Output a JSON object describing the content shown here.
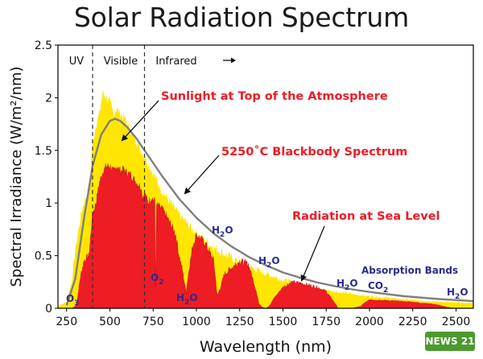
{
  "title": "Solar Radiation Spectrum",
  "watermark": "NEWS 21",
  "colors": {
    "top_of_atmosphere": "#ffe600",
    "sea_level": "#ee1c25",
    "blackbody": "#7f7f7f",
    "annotation_red": "#ee1c25",
    "molecule_label": "#2b2b8f"
  },
  "chart_data": {
    "type": "area",
    "title": "Solar Radiation Spectrum",
    "xlabel": "Wavelength (nm)",
    "ylabel": "Spectral Irradiance (W/m²/nm)",
    "xlim": [
      200,
      2600
    ],
    "ylim": [
      0,
      2.5
    ],
    "x_ticks": [
      250,
      500,
      750,
      1000,
      1250,
      1500,
      1750,
      2000,
      2250,
      2500
    ],
    "y_ticks": [
      0,
      0.5,
      1,
      1.5,
      2,
      2.5
    ],
    "grid": false,
    "regions": [
      {
        "label": "UV",
        "x_end": 400
      },
      {
        "label": "Visible",
        "x_start": 400,
        "x_end": 700
      },
      {
        "label": "Infrared",
        "x_start": 700,
        "arrow": "right"
      }
    ],
    "region_dividers": [
      400,
      700
    ],
    "series": [
      {
        "name": "Sunlight at Top of the Atmosphere",
        "fill": "#ffe600",
        "x": [
          200,
          250,
          280,
          300,
          320,
          340,
          360,
          380,
          400,
          420,
          440,
          460,
          480,
          500,
          520,
          540,
          560,
          580,
          600,
          620,
          650,
          680,
          700,
          750,
          800,
          850,
          900,
          950,
          1000,
          1050,
          1100,
          1200,
          1300,
          1400,
          1500,
          1600,
          1700,
          1800,
          1900,
          2000,
          2100,
          2200,
          2300,
          2400,
          2500,
          2600
        ],
        "y": [
          0.02,
          0.06,
          0.25,
          0.55,
          0.75,
          0.95,
          1.05,
          1.15,
          1.55,
          1.75,
          1.85,
          2.05,
          2.0,
          1.95,
          1.85,
          1.9,
          1.85,
          1.82,
          1.75,
          1.68,
          1.6,
          1.5,
          1.45,
          1.28,
          1.12,
          1.0,
          0.89,
          0.8,
          0.72,
          0.65,
          0.58,
          0.48,
          0.4,
          0.33,
          0.27,
          0.23,
          0.19,
          0.16,
          0.135,
          0.115,
          0.1,
          0.085,
          0.072,
          0.062,
          0.055,
          0.05
        ]
      },
      {
        "name": "Radiation at Sea Level",
        "fill": "#ee1c25",
        "x": [
          280,
          300,
          310,
          330,
          350,
          380,
          400,
          420,
          440,
          460,
          480,
          500,
          520,
          540,
          560,
          580,
          600,
          620,
          650,
          680,
          690,
          700,
          720,
          740,
          760,
          762,
          770,
          800,
          850,
          880,
          900,
          920,
          940,
          960,
          980,
          1000,
          1050,
          1100,
          1120,
          1140,
          1160,
          1200,
          1250,
          1300,
          1340,
          1360,
          1380,
          1400,
          1420,
          1450,
          1500,
          1550,
          1600,
          1650,
          1700,
          1750,
          1800,
          1820,
          1850,
          1880,
          1900,
          1950,
          1970,
          2000,
          2050,
          2100,
          2150,
          2200,
          2250,
          2300,
          2350,
          2400,
          2450,
          2500,
          2550,
          2600
        ],
        "y": [
          0,
          0.02,
          0.06,
          0.3,
          0.45,
          0.5,
          0.9,
          1.0,
          1.2,
          1.3,
          1.35,
          1.35,
          1.3,
          1.35,
          1.3,
          1.32,
          1.28,
          1.27,
          1.2,
          1.15,
          1.05,
          1.1,
          1.0,
          1.05,
          1.02,
          0.2,
          0.98,
          0.95,
          0.8,
          0.7,
          0.5,
          0.35,
          0.15,
          0.4,
          0.6,
          0.7,
          0.62,
          0.45,
          0.12,
          0.2,
          0.32,
          0.38,
          0.45,
          0.42,
          0.2,
          0.05,
          0.01,
          0.0,
          0.02,
          0.1,
          0.2,
          0.25,
          0.24,
          0.22,
          0.2,
          0.16,
          0.05,
          0.0,
          0.0,
          0.0,
          0.0,
          0.02,
          0.05,
          0.08,
          0.08,
          0.075,
          0.07,
          0.065,
          0.06,
          0.05,
          0.045,
          0.03,
          0.01,
          0.0,
          0.0,
          0.0
        ]
      },
      {
        "name": "5250°C Blackbody Spectrum",
        "stroke": "#7f7f7f",
        "x": [
          250,
          300,
          350,
          400,
          450,
          500,
          530,
          560,
          600,
          650,
          700,
          750,
          800,
          900,
          1000,
          1100,
          1200,
          1300,
          1400,
          1500,
          1600,
          1700,
          1800,
          1900,
          2000,
          2200,
          2400,
          2600
        ],
        "y": [
          0.03,
          0.28,
          0.85,
          1.35,
          1.65,
          1.78,
          1.8,
          1.78,
          1.72,
          1.62,
          1.5,
          1.38,
          1.26,
          1.04,
          0.86,
          0.71,
          0.59,
          0.49,
          0.41,
          0.34,
          0.29,
          0.245,
          0.21,
          0.18,
          0.155,
          0.115,
          0.088,
          0.068
        ]
      }
    ],
    "annotations": [
      {
        "text": "Sunlight at Top of the Atmosphere",
        "color": "#ee1c25"
      },
      {
        "text": "5250˚C Blackbody Spectrum",
        "color": "#ee1c25"
      },
      {
        "text": "Radiation at Sea Level",
        "color": "#ee1c25"
      }
    ],
    "absorption_label": "Absorption Bands",
    "molecule_labels": [
      {
        "base": "O",
        "sub": "3"
      },
      {
        "base": "O",
        "sub": "2"
      },
      {
        "base": "H",
        "sub": "2",
        "tail": "O"
      },
      {
        "base": "H",
        "sub": "2",
        "tail": "O"
      },
      {
        "base": "H",
        "sub": "2",
        "tail": "O"
      },
      {
        "base": "H",
        "sub": "2",
        "tail": "O"
      },
      {
        "base": "CO",
        "sub": "2"
      },
      {
        "base": "H",
        "sub": "2",
        "tail": "O"
      }
    ]
  }
}
